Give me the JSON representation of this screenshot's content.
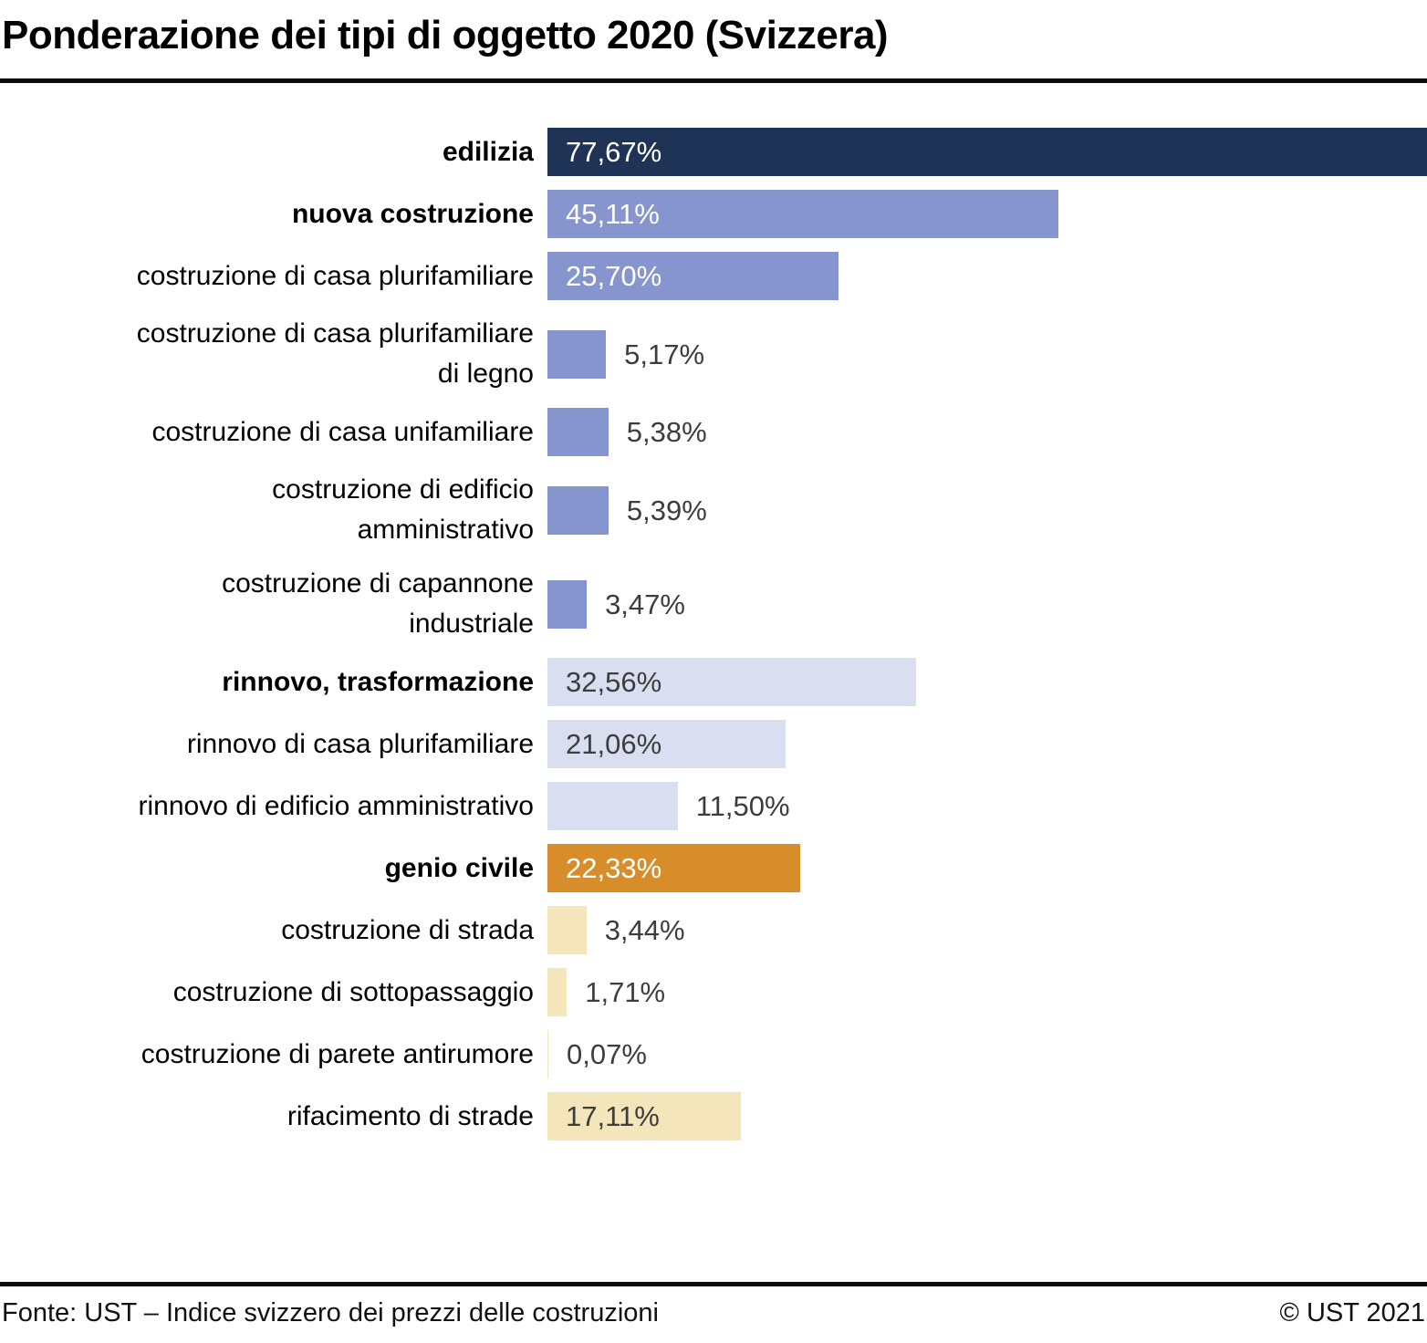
{
  "title": "Ponderazione dei tipi di oggetto 2020 (Svizzera)",
  "footer": {
    "source": "Fonte: UST – Indice svizzero dei prezzi delle costruzioni",
    "copyright": "© UST 2021"
  },
  "colors": {
    "navy": "#1f3357",
    "blue": "#8795ce",
    "lavender": "#d9def0",
    "orange": "#d78d29",
    "cream": "#f4e5bb",
    "value_dark": "#3d3d3d",
    "value_light": "#ffffff",
    "rule": "#0a0a0a"
  },
  "chart_data": {
    "type": "bar",
    "orientation": "horizontal",
    "title": "Ponderazione dei tipi di oggetto 2020 (Svizzera)",
    "xlabel": "",
    "ylabel": "",
    "unit": "%",
    "xlim": [
      0,
      77.67
    ],
    "grid": false,
    "legend": false,
    "categories": [
      "edilizia",
      "nuova costruzione",
      "costruzione di casa plurifamiliare",
      "costruzione di casa plurifamiliare di legno",
      "costruzione di casa unifamiliare",
      "costruzione di edificio amministrativo",
      "costruzione di capannone industriale",
      "rinnovo, trasformazione",
      "rinnovo di casa plurifamiliare",
      "rinnovo di edificio amministrativo",
      "genio civile",
      "costruzione di strada",
      "costruzione di sottopassaggio",
      "costruzione di parete antirumore",
      "rifacimento di strade"
    ],
    "values": [
      77.67,
      45.11,
      25.7,
      5.17,
      5.38,
      5.39,
      3.47,
      32.56,
      21.06,
      11.5,
      22.33,
      3.44,
      1.71,
      0.07,
      17.11
    ],
    "bars": [
      {
        "label": "edilizia",
        "value": 77.67,
        "display": "77,67%",
        "color": "navy",
        "bold": true,
        "value_inside": true,
        "value_color": "light"
      },
      {
        "label": "nuova costruzione",
        "value": 45.11,
        "display": "45,11%",
        "color": "blue",
        "bold": true,
        "value_inside": true,
        "value_color": "light"
      },
      {
        "label": "costruzione di casa plurifamiliare",
        "value": 25.7,
        "display": "25,70%",
        "color": "blue",
        "bold": false,
        "value_inside": true,
        "value_color": "light"
      },
      {
        "label": "costruzione di casa plurifamiliare\ndi legno",
        "value": 5.17,
        "display": "5,17%",
        "color": "blue",
        "bold": false,
        "value_inside": false,
        "value_color": "dark"
      },
      {
        "label": "costruzione di casa unifamiliare",
        "value": 5.38,
        "display": "5,38%",
        "color": "blue",
        "bold": false,
        "value_inside": false,
        "value_color": "dark"
      },
      {
        "label": "costruzione di edificio\namministrativo",
        "value": 5.39,
        "display": "5,39%",
        "color": "blue",
        "bold": false,
        "value_inside": false,
        "value_color": "dark"
      },
      {
        "label": "costruzione di capannone\nindustriale",
        "value": 3.47,
        "display": "3,47%",
        "color": "blue",
        "bold": false,
        "value_inside": false,
        "value_color": "dark"
      },
      {
        "label": "rinnovo, trasformazione",
        "value": 32.56,
        "display": "32,56%",
        "color": "lavender",
        "bold": true,
        "value_inside": true,
        "value_color": "dark"
      },
      {
        "label": "rinnovo di casa plurifamiliare",
        "value": 21.06,
        "display": "21,06%",
        "color": "lavender",
        "bold": false,
        "value_inside": true,
        "value_color": "dark"
      },
      {
        "label": "rinnovo di edificio amministrativo",
        "value": 11.5,
        "display": "11,50%",
        "color": "lavender",
        "bold": false,
        "value_inside": false,
        "value_color": "dark"
      },
      {
        "label": "genio civile",
        "value": 22.33,
        "display": "22,33%",
        "color": "orange",
        "bold": true,
        "value_inside": true,
        "value_color": "light"
      },
      {
        "label": "costruzione di strada",
        "value": 3.44,
        "display": "3,44%",
        "color": "cream",
        "bold": false,
        "value_inside": false,
        "value_color": "dark"
      },
      {
        "label": "costruzione di sottopassaggio",
        "value": 1.71,
        "display": "1,71%",
        "color": "cream",
        "bold": false,
        "value_inside": false,
        "value_color": "dark"
      },
      {
        "label": "costruzione di parete antirumore",
        "value": 0.07,
        "display": "0,07%",
        "color": "cream",
        "bold": false,
        "value_inside": false,
        "value_color": "dark"
      },
      {
        "label": "rifacimento di strade",
        "value": 17.11,
        "display": "17,11%",
        "color": "cream",
        "bold": false,
        "value_inside": true,
        "value_color": "dark"
      }
    ]
  }
}
